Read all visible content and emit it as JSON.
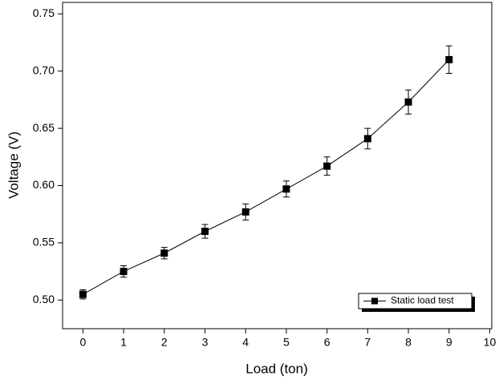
{
  "chart_data": {
    "type": "line",
    "x_label": "Load (ton)",
    "y_label": "Voltage (V)",
    "x": [
      0,
      1,
      2,
      3,
      4,
      5,
      6,
      7,
      8,
      9
    ],
    "series": [
      {
        "name": "Static load test",
        "color": "#000000",
        "values": [
          0.505,
          0.525,
          0.541,
          0.56,
          0.577,
          0.597,
          0.617,
          0.641,
          0.673,
          0.71
        ],
        "errors": [
          0.004,
          0.005,
          0.005,
          0.006,
          0.007,
          0.007,
          0.008,
          0.009,
          0.0105,
          0.012
        ]
      }
    ],
    "xlim": [
      -0.5,
      10.05
    ],
    "ylim": [
      0.475,
      0.76
    ],
    "xticks": [
      0,
      1,
      2,
      3,
      4,
      5,
      6,
      7,
      8,
      9,
      10
    ],
    "yticks": [
      {
        "value": 0.5,
        "label": "0.50"
      },
      {
        "value": 0.55,
        "label": "0.55"
      },
      {
        "value": 0.6,
        "label": "0.60"
      },
      {
        "value": 0.65,
        "label": "0.65"
      },
      {
        "value": 0.7,
        "label": "0.70"
      },
      {
        "value": 0.75,
        "label": "0.75"
      }
    ],
    "legend": "lower right",
    "grid": false
  }
}
